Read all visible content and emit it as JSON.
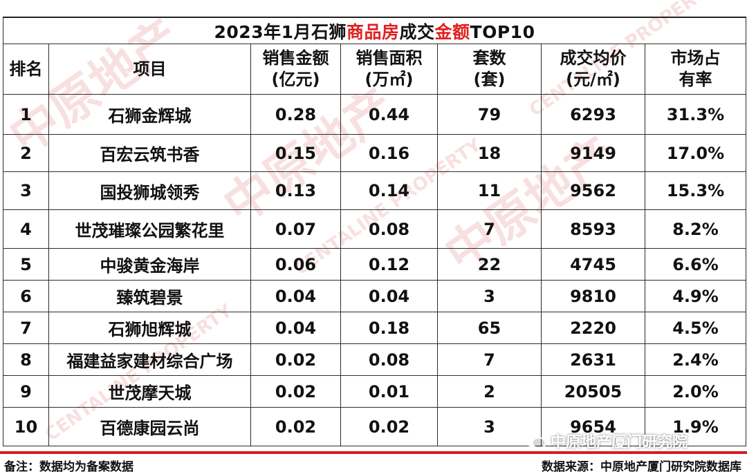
{
  "title": {
    "part1": "2023年1月石狮",
    "part2": "商品房",
    "part3": "成交",
    "part4": "金额",
    "part5": "TOP10"
  },
  "headers": {
    "rank": "排名",
    "project": "项目",
    "amount_l1": "销售金额",
    "amount_l2": "(亿元)",
    "area_l1": "销售面积",
    "area_l2": "(万㎡)",
    "units_l1": "套数",
    "units_l2": "(套)",
    "avg_l1": "成交均价",
    "avg_l2": "(元/㎡)",
    "share_l1": "市场占",
    "share_l2": "有率"
  },
  "rows": [
    {
      "rank": "1",
      "project": "石狮金辉城",
      "amount": "0.28",
      "area": "0.44",
      "units": "79",
      "avg_price": "6293",
      "share": "31.3%"
    },
    {
      "rank": "2",
      "project": "百宏云筑书香",
      "amount": "0.15",
      "area": "0.16",
      "units": "18",
      "avg_price": "9149",
      "share": "17.0%"
    },
    {
      "rank": "3",
      "project": "国投狮城领秀",
      "amount": "0.13",
      "area": "0.14",
      "units": "11",
      "avg_price": "9562",
      "share": "15.3%"
    },
    {
      "rank": "4",
      "project": "世茂璀璨公园繁花里",
      "amount": "0.07",
      "area": "0.08",
      "units": "7",
      "avg_price": "8593",
      "share": "8.2%"
    },
    {
      "rank": "5",
      "project": "中骏黄金海岸",
      "amount": "0.06",
      "area": "0.12",
      "units": "22",
      "avg_price": "4745",
      "share": "6.6%"
    },
    {
      "rank": "6",
      "project": "臻筑碧景",
      "amount": "0.04",
      "area": "0.04",
      "units": "3",
      "avg_price": "9810",
      "share": "4.9%"
    },
    {
      "rank": "7",
      "project": "石狮旭辉城",
      "amount": "0.04",
      "area": "0.18",
      "units": "65",
      "avg_price": "2220",
      "share": "4.5%"
    },
    {
      "rank": "8",
      "project": "福建益家建材综合广场",
      "amount": "0.02",
      "area": "0.08",
      "units": "7",
      "avg_price": "2631",
      "share": "2.4%"
    },
    {
      "rank": "9",
      "project": "世茂摩天城",
      "amount": "0.02",
      "area": "0.01",
      "units": "2",
      "avg_price": "20505",
      "share": "2.0%"
    },
    {
      "rank": "10",
      "project": "百德康园云尚",
      "amount": "0.02",
      "area": "0.02",
      "units": "3",
      "avg_price": "9654",
      "share": "1.9%"
    }
  ],
  "footer": {
    "note": "备注：数据均为备案数据",
    "source": "数据来源：中原地产厦门研究院数据库"
  },
  "badge": {
    "icon": "wechat-icon",
    "text": "中原地产厦门研究院"
  },
  "watermark": {
    "text_cn": "中原地产",
    "text_en": "CENTALINE PROPERTY"
  },
  "colors": {
    "title_highlight": "#e02020",
    "footer_line": "#d21f1f",
    "watermark": "#f4c8c8"
  }
}
